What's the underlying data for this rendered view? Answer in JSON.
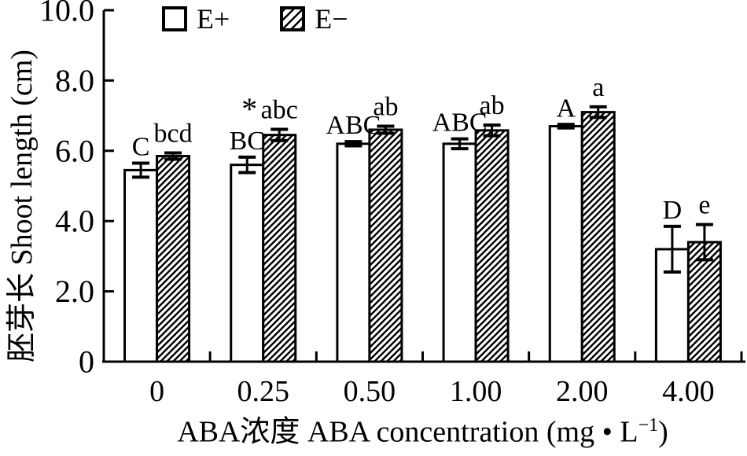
{
  "legend": {
    "items": [
      {
        "label": "E+",
        "swatch": "plain"
      },
      {
        "label": "E−",
        "swatch": "hatch"
      }
    ]
  },
  "axes": {
    "y_title": "胚芽长 Shoot length (cm)",
    "x_title_main": "ABA浓度 ABA concentration (mg • L",
    "x_title_sup": "−1",
    "x_title_close": ")"
  },
  "chart_data": {
    "type": "bar",
    "title": "",
    "categories": [
      "0",
      "0.25",
      "0.50",
      "1.00",
      "2.00",
      "4.00"
    ],
    "series": [
      {
        "name": "E+",
        "style": "plain",
        "values": [
          5.45,
          5.6,
          6.2,
          6.2,
          6.7,
          3.2
        ],
        "errors": [
          0.2,
          0.22,
          0.06,
          0.14,
          0.05,
          0.65
        ],
        "sig_labels": [
          "C",
          "BC",
          "ABC",
          "ABC",
          "A",
          "D"
        ]
      },
      {
        "name": "E−",
        "style": "hatch",
        "values": [
          5.85,
          6.45,
          6.6,
          6.58,
          7.1,
          3.4
        ],
        "errors": [
          0.09,
          0.16,
          0.1,
          0.15,
          0.15,
          0.5
        ],
        "sig_labels": [
          "bcd",
          "abc",
          "ab",
          "ab",
          "a",
          "e"
        ]
      }
    ],
    "annotations": [
      {
        "symbol": "*",
        "category": "0.25",
        "series": "E+"
      }
    ],
    "ylabel": "胚芽长 Shoot length (cm)",
    "xlabel": "ABA浓度 ABA concentration (mg • L⁻¹)",
    "ylim": [
      0,
      10
    ],
    "yticks": [
      {
        "value": 10,
        "label": "10.0"
      },
      {
        "value": 8,
        "label": "8.0"
      },
      {
        "value": 6,
        "label": "6.0"
      },
      {
        "value": 4,
        "label": "4.0"
      },
      {
        "value": 2,
        "label": "2.0"
      },
      {
        "value": 0,
        "label": "0"
      }
    ],
    "grid": false,
    "legend_position": "top"
  }
}
